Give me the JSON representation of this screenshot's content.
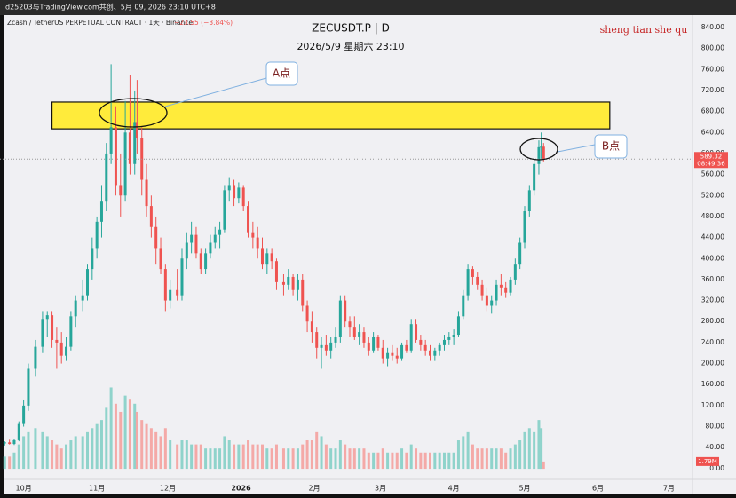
{
  "chart_data": {
    "type": "candlestick",
    "topbar": "d25203与TradingView.com共创、5月 09, 2026 23:10 UTC+8",
    "symbol_info": "Zcash / TetherUS PERPETUAL CONTRACT · 1天 · Binance",
    "change": "−23.55 (−3.84%)",
    "title": "ZECUSDT.P | D",
    "subtitle": "2026/5/9 星期六 23:10",
    "author": "sheng tian she qu",
    "annotations": [
      {
        "label": "A点"
      },
      {
        "label": "B点"
      }
    ],
    "countdown": "08:49:36",
    "volume_last_label": "1.79M",
    "up_color": "#26a69a",
    "down_color": "#ef5350",
    "up_volume_color": "#8fd3cb",
    "down_volume_color": "#f4a9a7",
    "highlight_zone": {
      "x": [
        12,
        248
      ],
      "y": [
        647,
        698
      ],
      "color": "#ffeb3b"
    },
    "grid": false,
    "xlim": [
      -10,
      283
    ],
    "xticks": [
      {
        "value": 0,
        "label": "10月"
      },
      {
        "value": 31,
        "label": "11月"
      },
      {
        "value": 61,
        "label": "12月"
      },
      {
        "value": 92,
        "label": "2026"
      },
      {
        "value": 123,
        "label": "2月"
      },
      {
        "value": 151,
        "label": "3月"
      },
      {
        "value": 182,
        "label": "4月"
      },
      {
        "value": 212,
        "label": "5月"
      },
      {
        "value": 243,
        "label": "6月"
      },
      {
        "value": 273,
        "label": "7月"
      }
    ],
    "ylim": [
      -20.5,
      867
    ],
    "yticks": [
      {
        "value": 0,
        "label": "0.00"
      },
      {
        "value": 40,
        "label": "40.00"
      },
      {
        "value": 80,
        "label": "80.00"
      },
      {
        "value": 120,
        "label": "120.00"
      },
      {
        "value": 160,
        "label": "160.00"
      },
      {
        "value": 200,
        "label": "200.00"
      },
      {
        "value": 240,
        "label": "240.00"
      },
      {
        "value": 280,
        "label": "280.00"
      },
      {
        "value": 320,
        "label": "320.00"
      },
      {
        "value": 360,
        "label": "360.00"
      },
      {
        "value": 400,
        "label": "400.00"
      },
      {
        "value": 440,
        "label": "440.00"
      },
      {
        "value": 480,
        "label": "480.00"
      },
      {
        "value": 520,
        "label": "520.00"
      },
      {
        "value": 560,
        "label": "560.00"
      },
      {
        "value": 600,
        "label": "600.00"
      },
      {
        "value": 640,
        "label": "640.00"
      },
      {
        "value": 680,
        "label": "680.00"
      },
      {
        "value": 720,
        "label": "720.00"
      },
      {
        "value": 760,
        "label": "760.00"
      },
      {
        "value": 800,
        "label": "800.00"
      },
      {
        "value": 840,
        "label": "840.00"
      }
    ],
    "y2lim": [
      -2.6,
      112
    ],
    "x": [
      -8,
      -6,
      -4,
      -2,
      0,
      2,
      5,
      8,
      10,
      12,
      14,
      16,
      18,
      20,
      22,
      25,
      27,
      29,
      31,
      33,
      35,
      37,
      39,
      41,
      43,
      45,
      47,
      48,
      50,
      52,
      54,
      56,
      58,
      60,
      62,
      65,
      67,
      69,
      71,
      73,
      75,
      77,
      79,
      81,
      83,
      85,
      87,
      89,
      91,
      93,
      95,
      97,
      99,
      101,
      103,
      105,
      107,
      110,
      112,
      114,
      116,
      118,
      120,
      122,
      124,
      126,
      128,
      130,
      132,
      134,
      136,
      138,
      140,
      142,
      144,
      146,
      148,
      150,
      152,
      154,
      156,
      158,
      160,
      162,
      164,
      166,
      168,
      170,
      172,
      174,
      176,
      178,
      180,
      182,
      184,
      186,
      188,
      190,
      192,
      194,
      196,
      198,
      200,
      202,
      204,
      206,
      208,
      210,
      212,
      214,
      216,
      218,
      219,
      220
    ],
    "open": [
      48,
      50,
      47,
      54,
      85,
      120,
      190,
      232,
      285,
      292,
      245,
      240,
      215,
      232,
      290,
      320,
      330,
      380,
      420,
      470,
      510,
      600,
      650,
      540,
      520,
      640,
      580,
      660,
      630,
      550,
      500,
      460,
      420,
      380,
      320,
      340,
      330,
      400,
      430,
      445,
      410,
      380,
      410,
      430,
      445,
      455,
      530,
      540,
      515,
      535,
      500,
      450,
      440,
      420,
      390,
      410,
      395,
      355,
      350,
      365,
      340,
      360,
      310,
      280,
      260,
      230,
      235,
      225,
      240,
      250,
      320,
      280,
      270,
      250,
      260,
      240,
      225,
      250,
      230,
      210,
      220,
      215,
      210,
      235,
      225,
      275,
      245,
      235,
      225,
      215,
      225,
      235,
      245,
      250,
      255,
      290,
      330,
      380,
      365,
      350,
      330,
      310,
      320,
      350,
      345,
      335,
      360,
      390,
      430,
      490,
      530,
      580,
      612,
      613
    ],
    "high": [
      52,
      55,
      56,
      90,
      130,
      200,
      245,
      300,
      300,
      300,
      270,
      260,
      250,
      300,
      330,
      360,
      390,
      440,
      480,
      540,
      620,
      770,
      690,
      600,
      700,
      750,
      720,
      740,
      650,
      580,
      520,
      480,
      440,
      390,
      360,
      380,
      420,
      450,
      470,
      460,
      420,
      420,
      445,
      460,
      470,
      540,
      555,
      550,
      545,
      540,
      510,
      470,
      460,
      440,
      420,
      420,
      400,
      370,
      380,
      370,
      370,
      370,
      320,
      300,
      270,
      250,
      255,
      250,
      270,
      330,
      330,
      290,
      290,
      275,
      270,
      250,
      260,
      255,
      245,
      230,
      235,
      230,
      240,
      245,
      285,
      285,
      255,
      245,
      235,
      230,
      240,
      255,
      260,
      265,
      300,
      340,
      390,
      385,
      375,
      360,
      345,
      330,
      360,
      370,
      355,
      365,
      400,
      440,
      500,
      540,
      590,
      625,
      640,
      620
    ],
    "low": [
      44,
      46,
      45,
      52,
      80,
      110,
      175,
      220,
      250,
      230,
      190,
      200,
      205,
      225,
      270,
      300,
      320,
      360,
      400,
      440,
      490,
      580,
      520,
      480,
      510,
      560,
      560,
      600,
      520,
      480,
      440,
      390,
      370,
      300,
      305,
      320,
      320,
      380,
      410,
      400,
      370,
      370,
      400,
      420,
      420,
      450,
      510,
      500,
      505,
      490,
      440,
      420,
      400,
      380,
      370,
      380,
      340,
      330,
      340,
      330,
      320,
      300,
      260,
      240,
      210,
      190,
      215,
      210,
      230,
      240,
      270,
      250,
      245,
      235,
      230,
      215,
      220,
      225,
      200,
      195,
      205,
      200,
      205,
      220,
      220,
      240,
      225,
      215,
      205,
      205,
      215,
      225,
      235,
      235,
      250,
      285,
      320,
      350,
      340,
      320,
      300,
      295,
      310,
      330,
      325,
      330,
      350,
      380,
      420,
      480,
      520,
      560,
      590,
      585
    ],
    "close": [
      50,
      47,
      54,
      85,
      120,
      190,
      232,
      285,
      292,
      245,
      240,
      215,
      232,
      290,
      320,
      330,
      380,
      420,
      470,
      510,
      600,
      650,
      540,
      520,
      640,
      580,
      660,
      630,
      550,
      500,
      460,
      420,
      380,
      320,
      340,
      330,
      400,
      430,
      445,
      410,
      380,
      410,
      430,
      445,
      455,
      530,
      540,
      515,
      535,
      500,
      450,
      440,
      420,
      390,
      410,
      395,
      355,
      350,
      365,
      340,
      360,
      310,
      280,
      260,
      230,
      235,
      225,
      240,
      250,
      320,
      280,
      270,
      250,
      260,
      240,
      225,
      250,
      230,
      210,
      220,
      215,
      210,
      235,
      225,
      275,
      245,
      235,
      225,
      215,
      225,
      235,
      245,
      250,
      255,
      290,
      330,
      380,
      365,
      350,
      330,
      310,
      320,
      350,
      345,
      335,
      360,
      390,
      430,
      490,
      530,
      580,
      612,
      613,
      589.32
    ],
    "volume": [
      3,
      3,
      4,
      6,
      8,
      9,
      10,
      9,
      8,
      7,
      6,
      5,
      6,
      7,
      8,
      8,
      9,
      10,
      11,
      12,
      15,
      20,
      16,
      14,
      18,
      17,
      16,
      14,
      12,
      11,
      10,
      9,
      8,
      10,
      7,
      6,
      7,
      7,
      6,
      6,
      6,
      5,
      5,
      5,
      5,
      8,
      7,
      6,
      6,
      6,
      7,
      6,
      6,
      6,
      5,
      5,
      6,
      5,
      5,
      5,
      5,
      6,
      7,
      7,
      9,
      8,
      6,
      5,
      5,
      7,
      6,
      5,
      5,
      5,
      5,
      4,
      4,
      4,
      5,
      4,
      4,
      4,
      5,
      4,
      6,
      5,
      4,
      4,
      4,
      4,
      4,
      4,
      4,
      4,
      7,
      8,
      9,
      6,
      5,
      5,
      5,
      5,
      5,
      5,
      4,
      5,
      6,
      7,
      9,
      10,
      9,
      12,
      10,
      1.79
    ]
  }
}
